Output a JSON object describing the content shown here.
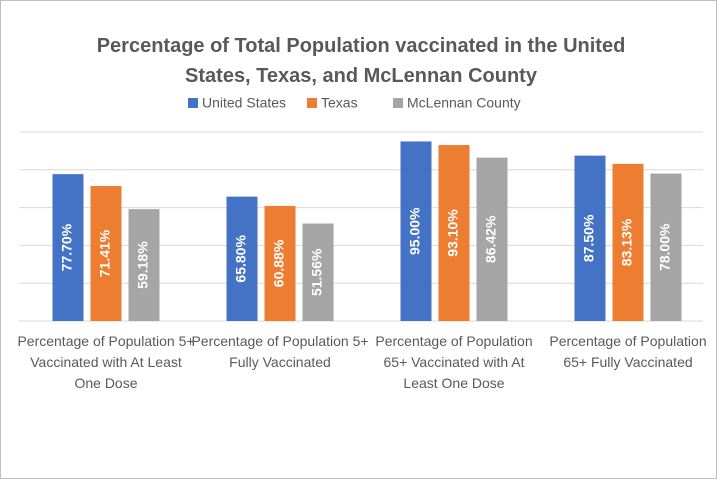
{
  "chart_data": {
    "type": "bar",
    "title": "Percentage of Total Population vaccinated in the United States, Texas, and McLennan County",
    "categories": [
      "Percentage of Population 5+ Vaccinated with At Least One Dose",
      "Percentage of Population 5+ Fully Vaccinated",
      "Percentage of Population 65+ Vaccinated with At Least One Dose",
      "Percentage of Population 65+ Fully Vaccinated"
    ],
    "series": [
      {
        "name": "United States",
        "color": "#4472c4",
        "values": [
          77.7,
          65.8,
          95.0,
          87.5
        ],
        "value_labels": [
          "77.70%",
          "65.80%",
          "95.00%",
          "87.50%"
        ]
      },
      {
        "name": "Texas",
        "color": "#ed7d31",
        "values": [
          71.41,
          60.88,
          93.1,
          83.13
        ],
        "value_labels": [
          "71.41%",
          "60.88%",
          "93.10%",
          "83.13%"
        ]
      },
      {
        "name": "McLennan County",
        "color": "#a5a5a5",
        "values": [
          59.18,
          51.56,
          86.42,
          78.0
        ],
        "value_labels": [
          "59.18%",
          "51.56%",
          "86.42%",
          "78.00%"
        ]
      }
    ],
    "ylim": [
      0,
      100
    ],
    "yticks": [
      0,
      20,
      40,
      60,
      80,
      100
    ],
    "grid": true
  }
}
